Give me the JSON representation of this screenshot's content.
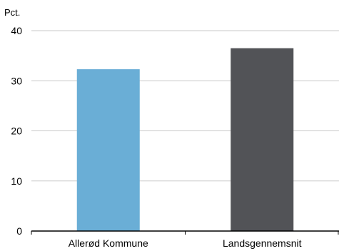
{
  "chart_data": {
    "type": "bar",
    "ylabel": "Pct.",
    "categories": [
      "Allerød Kommune",
      "Landsgennemsnit"
    ],
    "values": [
      32.3,
      36.5
    ],
    "ylim": [
      0,
      40
    ],
    "yticks": [
      0,
      10,
      20,
      30,
      40
    ],
    "ytick_labels": [
      "0",
      "10",
      "20",
      "30",
      "40"
    ],
    "grid": true,
    "legend": "none"
  },
  "colors": {
    "bars": [
      "#6aaed6",
      "#525357"
    ],
    "grid": "#c8c8c8",
    "axis": "#000000"
  }
}
